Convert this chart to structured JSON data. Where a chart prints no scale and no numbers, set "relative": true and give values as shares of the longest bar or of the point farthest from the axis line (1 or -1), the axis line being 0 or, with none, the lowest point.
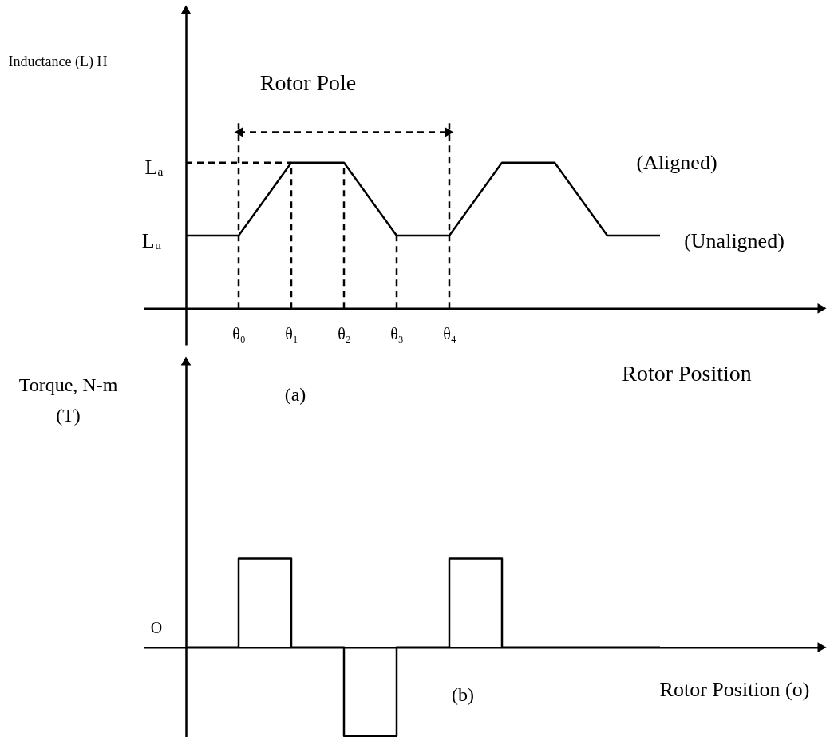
{
  "chart_data": [
    {
      "type": "line",
      "ylabel": "Inductance (L) H",
      "xlabel": "Rotor Position",
      "relative": true,
      "categories": [
        null,
        "θ₀",
        "θ₁",
        "θ₂",
        "θ₃",
        "θ₄",
        null,
        null,
        null,
        null
      ],
      "values": [
        0.5,
        0.5,
        1,
        1,
        0.5,
        0.5,
        1,
        1,
        0.5,
        0.5
      ],
      "color": "#000000",
      "tick_labels": "x",
      "ref_lines": [
        {
          "axis": "x",
          "value": "θ₀",
          "line_style": "dashed"
        },
        {
          "axis": "x",
          "value": "θ₁",
          "line_style": "dashed"
        },
        {
          "axis": "x",
          "value": "θ₂",
          "line_style": "dashed"
        },
        {
          "axis": "x",
          "value": "θ₃",
          "line_style": "dashed"
        },
        {
          "axis": "x",
          "value": "θ₄",
          "line_style": "dashed"
        },
        {
          "axis": "y",
          "value": 1,
          "line_style": "dashed"
        }
      ],
      "annotations": [
        "Lₐ",
        "Lᵤ",
        "Rotor Pole",
        "(Aligned)",
        "(Unaligned)",
        "(a)"
      ]
    },
    {
      "type": "step",
      "ylabel": "Torque, N-m\n(T)",
      "xlabel": "Rotor Position (ɵ)",
      "relative": true,
      "categories": [
        null,
        null,
        null,
        null,
        null,
        null,
        null,
        null,
        null,
        null
      ],
      "values": [
        0,
        1,
        0,
        -1,
        0,
        1,
        0,
        0,
        0,
        0
      ],
      "color": "#000000",
      "tick_labels": false,
      "annotations": [
        "O",
        "(b)"
      ]
    }
  ]
}
